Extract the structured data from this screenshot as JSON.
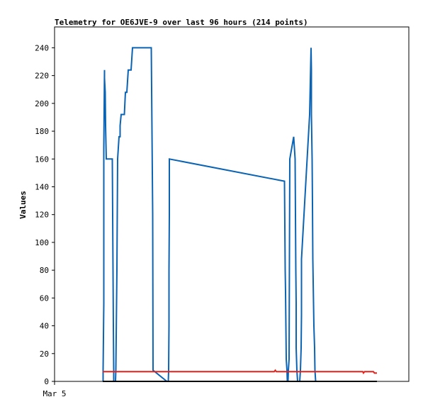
{
  "chart_data": {
    "type": "line",
    "title": "Telemetry for OE6JVE-9 over last 96 hours (214 points)",
    "xlabel": "",
    "ylabel": "Values",
    "x_tick_labels": [
      "Mar 5"
    ],
    "xlim": [
      0,
      100
    ],
    "ylim": [
      0,
      255
    ],
    "yticks": [
      0,
      20,
      40,
      60,
      80,
      100,
      120,
      140,
      160,
      180,
      200,
      220,
      240
    ],
    "grid": false,
    "legend": "none",
    "series": [
      {
        "color": "#0b63b4",
        "x": [
          13.7,
          13.7,
          13.9,
          13.9,
          14.1,
          14.1,
          14.3,
          14.4,
          14.6,
          14.7,
          14.9,
          16.3,
          16.4,
          16.6,
          16.7,
          16.7,
          17.2,
          17.3,
          17.6,
          17.8,
          18.0,
          18.2,
          18.5,
          18.5,
          18.8,
          19.7,
          20.0,
          20.2,
          20.4,
          20.6,
          20.8,
          21.1,
          21.6,
          21.8,
          22.0,
          23.2,
          23.4,
          23.8,
          24.1,
          24.3,
          24.5,
          27.3,
          27.7,
          27.8,
          31.7,
          32.1,
          32.2,
          32.3,
          32.3,
          32.4,
          32.4,
          64.9,
          65.0,
          65.1,
          65.2,
          65.3,
          65.4,
          65.6,
          65.7,
          65.9,
          66.0,
          66.2,
          66.4,
          67.5,
          67.9,
          68.1,
          68.2,
          68.2,
          68.4,
          68.6,
          69.2,
          69.4,
          69.6,
          69.7,
          69.7,
          72.0,
          72.4,
          72.5,
          72.5,
          72.7,
          72.8,
          72.9,
          73.1,
          73.2,
          73.4,
          73.5,
          73.7,
          73.9,
          74.2,
          74.3,
          74.7,
          74.7,
          74.9
        ],
        "y": [
          0,
          8,
          56,
          168,
          224,
          218,
          208,
          184,
          160,
          160,
          160,
          160,
          120,
          40,
          8,
          0,
          0,
          8,
          80,
          160,
          168,
          176,
          176,
          184,
          192,
          192,
          208,
          208,
          208,
          216,
          224,
          224,
          224,
          232,
          240,
          240,
          240,
          240,
          240,
          240,
          240,
          240,
          120,
          8,
          0,
          0,
          8,
          40,
          80,
          120,
          160,
          144,
          112,
          80,
          64,
          40,
          16,
          8,
          0,
          0,
          8,
          16,
          160,
          176,
          160,
          80,
          56,
          24,
          8,
          0,
          0,
          8,
          24,
          48,
          88,
          192,
          240,
          224,
          192,
          160,
          128,
          88,
          56,
          40,
          24,
          8,
          0,
          0,
          0,
          0,
          0,
          0,
          0
        ]
      },
      {
        "color": "#e8201a",
        "x": [
          13.6,
          35.0,
          50.0,
          62.0,
          62.3,
          62.6,
          63.0,
          80.0,
          87.0,
          87.2,
          87.5,
          88.0,
          89.0,
          90.0,
          90.3,
          90.6,
          91.0
        ],
        "y": [
          7,
          7,
          7,
          7,
          8,
          7,
          7,
          7,
          7,
          6,
          7,
          7,
          7,
          7,
          6,
          6,
          6
        ]
      },
      {
        "color": "#000000",
        "x": [
          13.6,
          91.0
        ],
        "y": [
          0,
          0
        ]
      }
    ]
  }
}
